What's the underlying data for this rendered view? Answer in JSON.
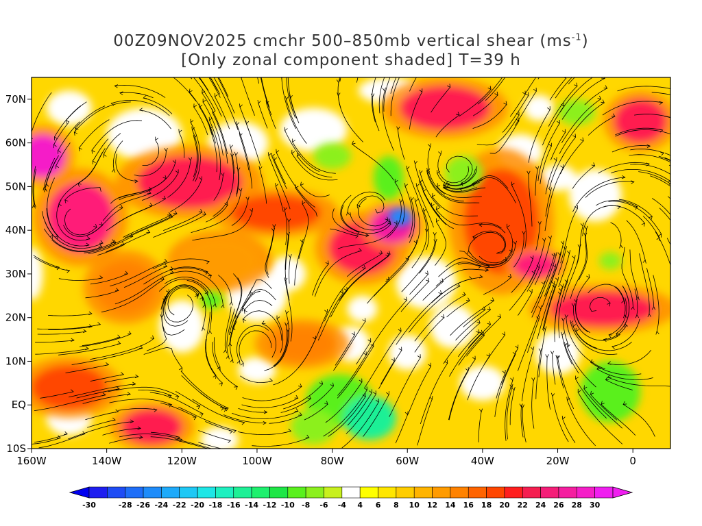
{
  "title": {
    "line1_prefix": "00Z09NOV2025 cmchr 500–850mb vertical shear (ms",
    "line1_exp": "-1",
    "line1_suffix": ")",
    "line2": "[Only zonal component shaded] T=39 h"
  },
  "map": {
    "lon_range": [
      -160,
      10
    ],
    "lat_range": [
      -10,
      75
    ],
    "lat_ticks": [
      {
        "value": 70,
        "label": "70N"
      },
      {
        "value": 60,
        "label": "60N"
      },
      {
        "value": 50,
        "label": "50N"
      },
      {
        "value": 40,
        "label": "40N"
      },
      {
        "value": 30,
        "label": "30N"
      },
      {
        "value": 20,
        "label": "20N"
      },
      {
        "value": 10,
        "label": "10N"
      },
      {
        "value": 0,
        "label": "EQ"
      },
      {
        "value": -10,
        "label": "10S"
      }
    ],
    "lon_ticks": [
      {
        "value": -160,
        "label": "160W"
      },
      {
        "value": -140,
        "label": "140W"
      },
      {
        "value": -120,
        "label": "120W"
      },
      {
        "value": -100,
        "label": "100W"
      },
      {
        "value": -80,
        "label": "80W"
      },
      {
        "value": -60,
        "label": "60W"
      },
      {
        "value": -40,
        "label": "40W"
      },
      {
        "value": -20,
        "label": "20W"
      },
      {
        "value": 0,
        "label": "0"
      }
    ]
  },
  "colorbar": {
    "labels": [
      "-30",
      "-28",
      "-26",
      "-24",
      "-22",
      "-20",
      "-18",
      "-16",
      "-14",
      "-12",
      "-10",
      "-8",
      "-6",
      "-4",
      "4",
      "6",
      "8",
      "10",
      "12",
      "14",
      "16",
      "18",
      "20",
      "22",
      "24",
      "26",
      "28",
      "30"
    ],
    "colors": [
      "#1e1ef0",
      "#1e4cf5",
      "#1e6ef8",
      "#1e8cfa",
      "#1eaafa",
      "#1ec8f5",
      "#1ee6e6",
      "#1ef0c0",
      "#1ef096",
      "#1ef06e",
      "#1ee646",
      "#5af01e",
      "#8cf01e",
      "#c8f01e",
      "#ffffff",
      "#ffff00",
      "#ffe600",
      "#ffcd00",
      "#ffb400",
      "#ff9b00",
      "#ff8200",
      "#ff6400",
      "#ff4600",
      "#ff1e1e",
      "#f51e50",
      "#f51e78",
      "#f51ea0",
      "#f51ec8",
      "#f01ef0"
    ]
  },
  "fields": {
    "blobs": [
      {
        "lon": -147,
        "lat": 43,
        "rlon": 9,
        "rlat": 8,
        "c": "#ff1e78"
      },
      {
        "lon": -157,
        "lat": 57,
        "rlon": 6,
        "rlat": 5,
        "c": "#f51ec8"
      },
      {
        "lon": -118,
        "lat": 51,
        "rlon": 14,
        "rlat": 6,
        "c": "#ff1e50"
      },
      {
        "lon": -95,
        "lat": 44,
        "rlon": 12,
        "rlat": 4,
        "c": "#ff4600"
      },
      {
        "lon": -72,
        "lat": 36,
        "rlon": 9,
        "rlat": 6,
        "c": "#ff1e50"
      },
      {
        "lon": -64,
        "lat": 41,
        "rlon": 6,
        "rlat": 4,
        "c": "#f51ea0"
      },
      {
        "lon": -50,
        "lat": 68,
        "rlon": 12,
        "rlat": 5,
        "c": "#ff1e50"
      },
      {
        "lon": -35,
        "lat": 42,
        "rlon": 10,
        "rlat": 12,
        "c": "#ff4600"
      },
      {
        "lon": -26,
        "lat": 32,
        "rlon": 6,
        "rlat": 3,
        "c": "#ff1e78"
      },
      {
        "lon": 2,
        "lat": 65,
        "rlon": 7,
        "rlat": 5,
        "c": "#ff1e50"
      },
      {
        "lon": -8,
        "lat": 22,
        "rlon": 14,
        "rlat": 4,
        "c": "#ff1e50"
      },
      {
        "lon": -150,
        "lat": 4,
        "rlon": 10,
        "rlat": 5,
        "c": "#ff4600"
      },
      {
        "lon": -128,
        "lat": -5,
        "rlon": 8,
        "rlat": 4,
        "c": "#ff1e50"
      },
      {
        "lon": -88,
        "lat": 14,
        "rlon": 9,
        "rlat": 4,
        "c": "#ff8200"
      },
      {
        "lon": -135,
        "lat": 27,
        "rlon": 8,
        "rlat": 6,
        "c": "#ff8200"
      },
      {
        "lon": -110,
        "lat": 33,
        "rlon": 10,
        "rlat": 5,
        "c": "#ff9b00"
      }
    ],
    "green": [
      {
        "lon": -78,
        "lat": 1,
        "rlon": 9,
        "rlat": 6,
        "c": "#5af01e"
      },
      {
        "lon": -70,
        "lat": -3,
        "rlon": 7,
        "rlat": 5,
        "c": "#1ef096"
      },
      {
        "lon": -85,
        "lat": -5,
        "rlon": 6,
        "rlat": 4,
        "c": "#8cf01e"
      },
      {
        "lon": -65,
        "lat": 52,
        "rlon": 4,
        "rlat": 5,
        "c": "#5af01e"
      },
      {
        "lon": -62,
        "lat": 43,
        "rlon": 3,
        "rlat": 2,
        "c": "#1e8cfa"
      },
      {
        "lon": -80,
        "lat": 57,
        "rlon": 5,
        "rlat": 3,
        "c": "#8cf01e"
      },
      {
        "lon": -6,
        "lat": 3,
        "rlon": 8,
        "rlat": 7,
        "c": "#5af01e"
      },
      {
        "lon": -45,
        "lat": 53,
        "rlon": 5,
        "rlat": 4,
        "c": "#8cf01e"
      },
      {
        "lon": -112,
        "lat": 24,
        "rlon": 3,
        "rlat": 2,
        "c": "#5af01e"
      },
      {
        "lon": -15,
        "lat": 67,
        "rlon": 5,
        "rlat": 3,
        "c": "#8cf01e"
      },
      {
        "lon": -6,
        "lat": 33,
        "rlon": 3,
        "rlat": 2,
        "c": "#8cf01e"
      }
    ]
  }
}
